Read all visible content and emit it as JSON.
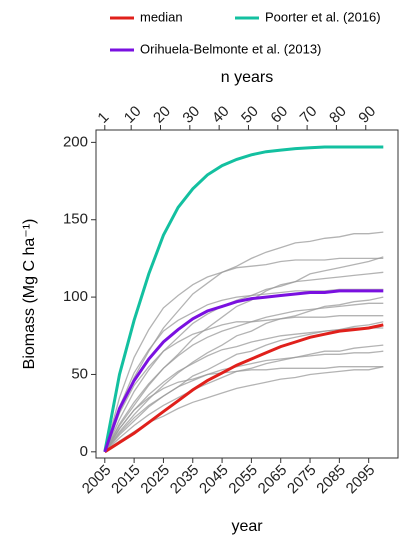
{
  "chart_data": {
    "type": "line",
    "x_label": "year",
    "x2_label": "n years",
    "y_label": "Biomass (Mg C ha⁻¹)",
    "x": [
      2005,
      2010,
      2015,
      2020,
      2025,
      2030,
      2035,
      2040,
      2045,
      2050,
      2055,
      2060,
      2065,
      2070,
      2075,
      2080,
      2085,
      2090,
      2095,
      2100
    ],
    "xlim": [
      2002,
      2105
    ],
    "xticks": [
      2005,
      2015,
      2025,
      2035,
      2045,
      2055,
      2065,
      2075,
      2085,
      2095
    ],
    "x2lim": [
      -2,
      101
    ],
    "x2ticks": [
      1,
      10,
      20,
      30,
      40,
      50,
      60,
      70,
      80,
      90
    ],
    "ylim": [
      -4,
      208
    ],
    "yticks": [
      0,
      50,
      100,
      150,
      200
    ],
    "series": [
      {
        "color": "#9a9a9a",
        "values": [
          0,
          26,
          48,
          65,
          80,
          91,
          102,
          109,
          116,
          120,
          125,
          129,
          132,
          135,
          136,
          138,
          139,
          141,
          141,
          142
        ]
      },
      {
        "color": "#9a9a9a",
        "values": [
          0,
          17,
          30,
          43,
          54,
          63,
          73,
          80,
          87,
          94,
          98,
          104,
          108,
          110,
          115,
          117,
          119,
          121,
          123,
          126
        ]
      },
      {
        "color": "#9a9a9a",
        "values": [
          0,
          35,
          61,
          79,
          93,
          101,
          108,
          113,
          116,
          119,
          120,
          121,
          123,
          124,
          124,
          124,
          125,
          125,
          125,
          125
        ]
      },
      {
        "color": "#9a9a9a",
        "values": [
          0,
          21,
          39,
          53,
          65,
          74,
          83,
          89,
          94,
          98,
          101,
          105,
          107,
          110,
          111,
          112,
          113,
          114,
          115,
          116
        ]
      },
      {
        "color": "#9a9a9a",
        "values": [
          0,
          13,
          24,
          34,
          43,
          51,
          58,
          64,
          69,
          75,
          78,
          83,
          86,
          88,
          91,
          94,
          95,
          97,
          98,
          100
        ]
      },
      {
        "color": "#9a9a9a",
        "values": [
          0,
          29,
          51,
          66,
          78,
          85,
          90,
          95,
          98,
          100,
          101,
          102,
          103,
          104,
          104,
          104,
          105,
          105,
          105,
          105
        ]
      },
      {
        "color": "#9a9a9a",
        "values": [
          0,
          18,
          32,
          44,
          54,
          62,
          69,
          74,
          78,
          81,
          84,
          87,
          89,
          91,
          92,
          93,
          94,
          95,
          96,
          96
        ]
      },
      {
        "color": "#9a9a9a",
        "values": [
          0,
          11,
          20,
          29,
          36,
          42,
          49,
          53,
          58,
          63,
          65,
          69,
          72,
          74,
          76,
          78,
          79,
          81,
          82,
          84
        ]
      },
      {
        "color": "#9a9a9a",
        "values": [
          0,
          25,
          43,
          55,
          65,
          71,
          76,
          79,
          82,
          84,
          84,
          85,
          86,
          87,
          87,
          87,
          88,
          88,
          88,
          88
        ]
      },
      {
        "color": "#9a9a9a",
        "values": [
          0,
          15,
          27,
          37,
          45,
          52,
          57,
          62,
          66,
          68,
          71,
          73,
          75,
          76,
          77,
          78,
          79,
          80,
          80,
          80
        ]
      },
      {
        "color": "#9a9a9a",
        "values": [
          0,
          9,
          17,
          24,
          30,
          35,
          40,
          44,
          48,
          52,
          54,
          57,
          59,
          61,
          63,
          65,
          65,
          67,
          68,
          69
        ]
      },
      {
        "color": "#9a9a9a",
        "values": [
          0,
          12,
          22,
          30,
          36,
          42,
          46,
          50,
          53,
          55,
          57,
          59,
          60,
          61,
          62,
          63,
          63,
          64,
          64,
          65
        ]
      },
      {
        "color": "#9a9a9a",
        "values": [
          0,
          7,
          13,
          19,
          23,
          28,
          32,
          35,
          38,
          41,
          43,
          45,
          47,
          48,
          50,
          51,
          52,
          53,
          53,
          55
        ]
      },
      {
        "color": "#9a9a9a",
        "values": [
          0,
          15,
          27,
          35,
          41,
          45,
          47,
          50,
          51,
          52,
          53,
          53,
          54,
          54,
          54,
          54,
          55,
          55,
          55,
          55
        ]
      },
      {
        "name": "median",
        "color": "#e0201b",
        "values": [
          0,
          6,
          12,
          19,
          26,
          33,
          40,
          46,
          51,
          56,
          60,
          64,
          68,
          71,
          74,
          76,
          78,
          79,
          80,
          82
        ]
      },
      {
        "name": "Poorter et al. (2016)",
        "color": "#13c0a0",
        "values": [
          0,
          50,
          85,
          115,
          140,
          158,
          170,
          179,
          185,
          189,
          192,
          194,
          195,
          196,
          196.5,
          197,
          197,
          197,
          197,
          197
        ]
      },
      {
        "name": "Orihuela-Belmonte et al. (2013)",
        "color": "#7a10e0",
        "values": [
          0,
          28,
          46,
          60,
          71,
          79,
          86,
          91,
          94,
          97,
          99,
          100,
          101,
          102,
          103,
          103,
          104,
          104,
          104,
          104
        ]
      }
    ]
  }
}
